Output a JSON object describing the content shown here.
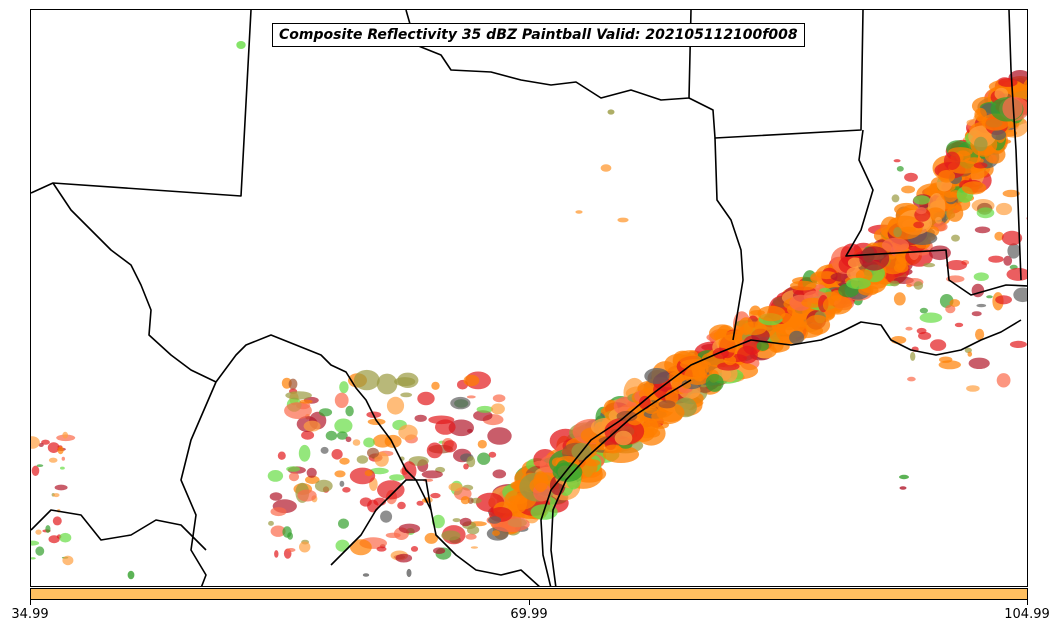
{
  "title": "Composite Reflectivity 35 dBZ Paintball Valid: 202105112100f008",
  "colorbar": {
    "color": "#ffbf60",
    "ticks": [
      "34.99",
      "69.99",
      "104.99"
    ]
  },
  "paintball_colors": [
    "#ff7f00",
    "#e31a1c",
    "#fb6a4a",
    "#ffa040",
    "#b2182b",
    "#33a02c",
    "#66dd44",
    "#9a9a40",
    "#606060",
    "#a0522d"
  ],
  "region_labels": []
}
